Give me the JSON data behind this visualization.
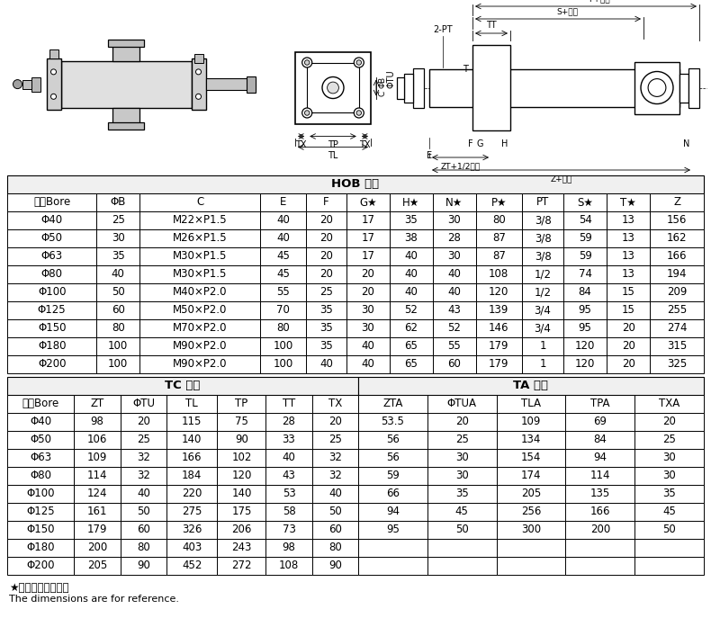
{
  "hob_title": "HOB 型式",
  "hob_headers": [
    "缸径Bore",
    "ΦB",
    "C",
    "E",
    "F",
    "G★",
    "H★",
    "N★",
    "P★",
    "PT",
    "S★",
    "T★",
    "Z"
  ],
  "hob_rows": [
    [
      "Φ40",
      "25",
      "M22×P1.5",
      "40",
      "20",
      "17",
      "35",
      "30",
      "80",
      "3/8",
      "54",
      "13",
      "156"
    ],
    [
      "Φ50",
      "30",
      "M26×P1.5",
      "40",
      "20",
      "17",
      "38",
      "28",
      "87",
      "3/8",
      "59",
      "13",
      "162"
    ],
    [
      "Φ63",
      "35",
      "M30×P1.5",
      "45",
      "20",
      "17",
      "40",
      "30",
      "87",
      "3/8",
      "59",
      "13",
      "166"
    ],
    [
      "Φ80",
      "40",
      "M30×P1.5",
      "45",
      "20",
      "20",
      "40",
      "40",
      "108",
      "1/2",
      "74",
      "13",
      "194"
    ],
    [
      "Φ100",
      "50",
      "M40×P2.0",
      "55",
      "25",
      "20",
      "40",
      "40",
      "120",
      "1/2",
      "84",
      "15",
      "209"
    ],
    [
      "Φ125",
      "60",
      "M50×P2.0",
      "70",
      "35",
      "30",
      "52",
      "43",
      "139",
      "3/4",
      "95",
      "15",
      "255"
    ],
    [
      "Φ150",
      "80",
      "M70×P2.0",
      "80",
      "35",
      "30",
      "62",
      "52",
      "146",
      "3/4",
      "95",
      "20",
      "274"
    ],
    [
      "Φ180",
      "100",
      "M90×P2.0",
      "100",
      "35",
      "40",
      "65",
      "55",
      "179",
      "1",
      "120",
      "20",
      "315"
    ],
    [
      "Φ200",
      "100",
      "M90×P2.0",
      "100",
      "40",
      "40",
      "65",
      "60",
      "179",
      "1",
      "120",
      "20",
      "325"
    ]
  ],
  "tc_title": "TC 型式",
  "tc_headers": [
    "缸径Bore",
    "ZT",
    "ΦTU",
    "TL",
    "TP",
    "TT",
    "TX"
  ],
  "tc_rows": [
    [
      "Φ40",
      "98",
      "20",
      "115",
      "75",
      "28",
      "20"
    ],
    [
      "Φ50",
      "106",
      "25",
      "140",
      "90",
      "33",
      "25"
    ],
    [
      "Φ63",
      "109",
      "32",
      "166",
      "102",
      "40",
      "32"
    ],
    [
      "Φ80",
      "114",
      "32",
      "184",
      "120",
      "43",
      "32"
    ],
    [
      "Φ100",
      "124",
      "40",
      "220",
      "140",
      "53",
      "40"
    ],
    [
      "Φ125",
      "161",
      "50",
      "275",
      "175",
      "58",
      "50"
    ],
    [
      "Φ150",
      "179",
      "60",
      "326",
      "206",
      "73",
      "60"
    ],
    [
      "Φ180",
      "200",
      "80",
      "403",
      "243",
      "98",
      "80"
    ],
    [
      "Φ200",
      "205",
      "90",
      "452",
      "272",
      "108",
      "90"
    ]
  ],
  "ta_title": "TA 型式",
  "ta_headers": [
    "ZTA",
    "ΦTUA",
    "TLA",
    "TPA",
    "TXA"
  ],
  "ta_rows": [
    [
      "53.5",
      "20",
      "109",
      "69",
      "20"
    ],
    [
      "56",
      "25",
      "134",
      "84",
      "25"
    ],
    [
      "56",
      "30",
      "154",
      "94",
      "30"
    ],
    [
      "59",
      "30",
      "174",
      "114",
      "30"
    ],
    [
      "66",
      "35",
      "205",
      "135",
      "35"
    ],
    [
      "94",
      "45",
      "256",
      "166",
      "45"
    ],
    [
      "95",
      "50",
      "300",
      "200",
      "50"
    ],
    [
      "",
      "",
      "",
      "",
      ""
    ],
    [
      "",
      "",
      "",
      "",
      ""
    ]
  ],
  "footer_note": "★标尺寸仅供参考。",
  "footer_note2": "The dimensions are for reference.",
  "bg_color": "#ffffff",
  "title_bg": "#f0f0f0",
  "header_bg": "#ffffff",
  "border_color": "#000000"
}
